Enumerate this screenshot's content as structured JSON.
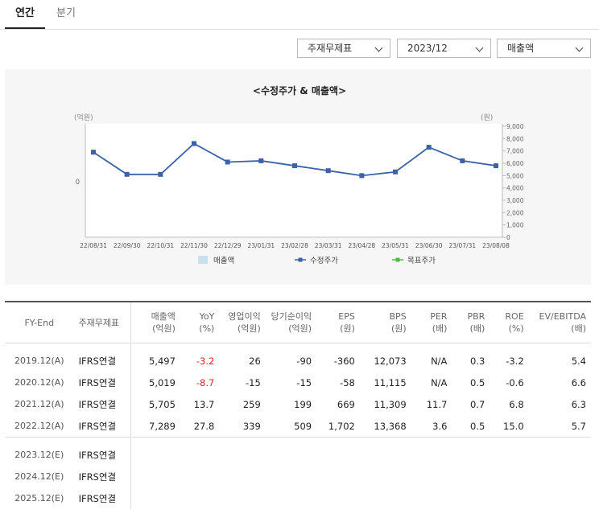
{
  "tabs": [
    "연간",
    "분기"
  ],
  "selectors": {
    "statement": "주재무제표",
    "period": "2023/12",
    "metric": "매출액"
  },
  "chart_data": {
    "type": "line",
    "title": "<수정주가 & 매출액>",
    "left_unit": "(억원)",
    "right_unit": "(원)",
    "left_ticks": [
      "0"
    ],
    "right_ticks": [
      "9,000",
      "8,000",
      "7,000",
      "6,000",
      "5,000",
      "4,000",
      "3,000",
      "2,000",
      "1,000",
      "0"
    ],
    "ylim_right": [
      0,
      9000
    ],
    "x": [
      "22/08/31",
      "22/09/30",
      "22/10/31",
      "22/11/30",
      "22/12/29",
      "23/01/31",
      "23/02/28",
      "23/03/31",
      "23/04/28",
      "23/05/31",
      "23/06/30",
      "23/07/31",
      "23/08/08"
    ],
    "series": [
      {
        "name": "수정주가",
        "color": "#3a62a8",
        "values": [
          6900,
          5100,
          5100,
          7600,
          6100,
          6200,
          5800,
          5400,
          5000,
          5300,
          7300,
          6200,
          5800
        ]
      }
    ],
    "legend": [
      {
        "name": "매출액",
        "color": "#c8e1ec",
        "kind": "box"
      },
      {
        "name": "수정주가",
        "color": "#3a62a8",
        "kind": "line"
      },
      {
        "name": "목표주가",
        "color": "#54b848",
        "kind": "line"
      }
    ],
    "legend_position": "bottom",
    "grid": false
  },
  "table": {
    "headers": [
      [
        "FY-End"
      ],
      [
        "주재무제표"
      ],
      [
        "매출액",
        "(억원)"
      ],
      [
        "YoY",
        "(%)"
      ],
      [
        "영업이익",
        "(억원)"
      ],
      [
        "당기순이익",
        "(억원)"
      ],
      [
        "EPS",
        "(원)"
      ],
      [
        "BPS",
        "(원)"
      ],
      [
        "PER",
        "(배)"
      ],
      [
        "PBR",
        "(배)"
      ],
      [
        "ROE",
        "(%)"
      ],
      [
        "EV/EBITDA",
        "(배)"
      ]
    ],
    "rows": [
      [
        "2019.12(A)",
        "IFRS연결",
        "5,497",
        "-3.2",
        "26",
        "-90",
        "-360",
        "12,073",
        "N/A",
        "0.3",
        "-3.2",
        "5.4"
      ],
      [
        "2020.12(A)",
        "IFRS연결",
        "5,019",
        "-8.7",
        "-15",
        "-15",
        "-58",
        "11,115",
        "N/A",
        "0.5",
        "-0.6",
        "6.6"
      ],
      [
        "2021.12(A)",
        "IFRS연결",
        "5,705",
        "13.7",
        "259",
        "199",
        "669",
        "11,309",
        "11.7",
        "0.7",
        "6.8",
        "6.3"
      ],
      [
        "2022.12(A)",
        "IFRS연결",
        "7,289",
        "27.8",
        "339",
        "509",
        "1,702",
        "13,368",
        "3.6",
        "0.5",
        "15.0",
        "5.7"
      ],
      [
        "2023.12(E)",
        "IFRS연결",
        "",
        "",
        "",
        "",
        "",
        "",
        "",
        "",
        "",
        ""
      ],
      [
        "2024.12(E)",
        "IFRS연결",
        "",
        "",
        "",
        "",
        "",
        "",
        "",
        "",
        "",
        ""
      ],
      [
        "2025.12(E)",
        "IFRS연결",
        "",
        "",
        "",
        "",
        "",
        "",
        "",
        "",
        "",
        ""
      ]
    ],
    "negative_color": "#d9272e"
  }
}
